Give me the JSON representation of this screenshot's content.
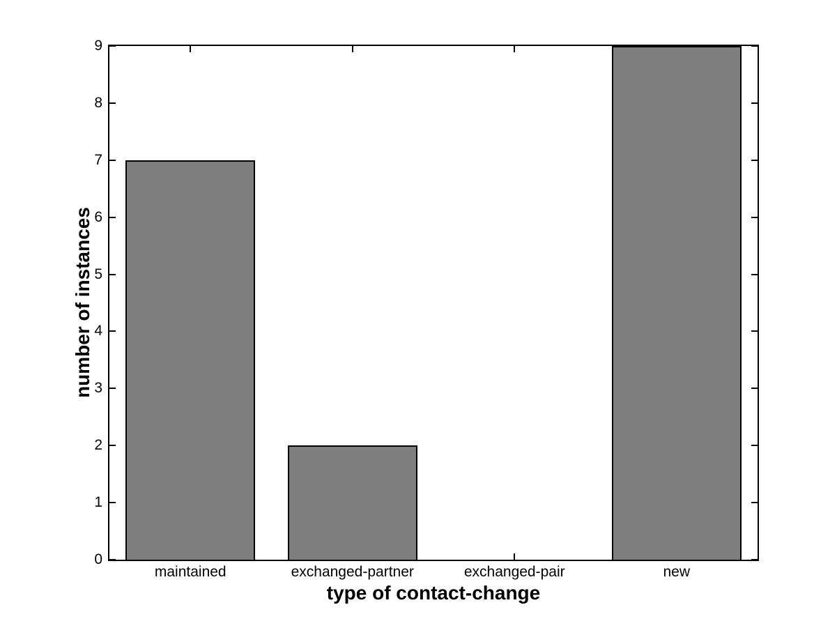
{
  "figure": {
    "background": "#FFFFFF"
  },
  "chart_data": {
    "type": "bar",
    "categories": [
      "maintained",
      "exchanged-partner",
      "exchanged-pair",
      "new"
    ],
    "values": [
      7,
      2,
      0,
      9
    ],
    "title": "",
    "xlabel": "type of contact-change",
    "ylabel": "number of instances",
    "ylim": [
      0,
      9
    ],
    "yticks": [
      0,
      1,
      2,
      3,
      4,
      5,
      6,
      7,
      8,
      9
    ],
    "bar_color": "#7F7F7F",
    "bar_edge_color": "#000000",
    "axis_color": "#000000",
    "plot_background": "#FFFFFF",
    "grid": false,
    "legend_position": "none",
    "bar_width_fraction": 0.8,
    "tick_direction": "in"
  }
}
